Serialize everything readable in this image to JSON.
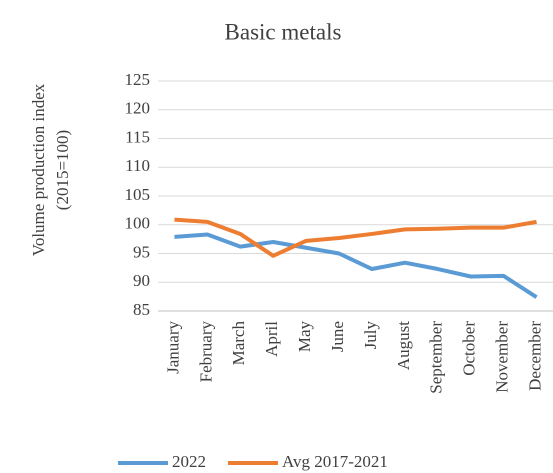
{
  "chart_data": {
    "type": "line",
    "title": "Basic metals",
    "y_label": [
      "Volume production index",
      "(2015=100)"
    ],
    "categories": [
      "January",
      "February",
      "March",
      "April",
      "May",
      "June",
      "July",
      "August",
      "September",
      "October",
      "November",
      "December"
    ],
    "series": [
      {
        "name": "2022",
        "color": "#5b9bd5",
        "values": [
          97.9,
          98.3,
          96.2,
          97.0,
          96.0,
          95.0,
          92.3,
          93.4,
          92.3,
          91.0,
          91.1,
          87.4
        ]
      },
      {
        "name": "Avg 2017-2021",
        "color": "#ed7d31",
        "values": [
          100.9,
          100.5,
          98.4,
          94.6,
          97.2,
          97.7,
          98.4,
          99.2,
          99.3,
          99.5,
          99.5,
          100.5
        ]
      }
    ],
    "ylim": [
      85,
      125
    ],
    "yticks": [
      85,
      90,
      95,
      100,
      105,
      110,
      115,
      120,
      125
    ],
    "grid": true,
    "legend": "bottom"
  }
}
